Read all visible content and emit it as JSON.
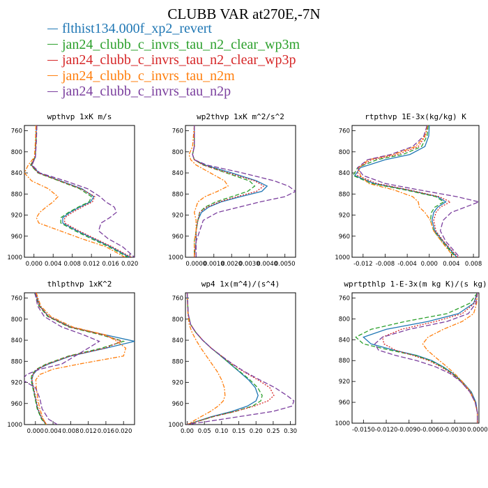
{
  "title": "CLUBB VAR at270E,-7N",
  "legend": [
    {
      "name": "flthist134.000f_xp2_revert",
      "color": "#1f77b4"
    },
    {
      "name": "jan24_clubb_c_invrs_tau_n2_clear_wp3m",
      "color": "#2ca02c"
    },
    {
      "name": "jan24_clubb_c_invrs_tau_n2_clear_wp3p",
      "color": "#d62728"
    },
    {
      "name": "jan24_clubb_c_invrs_tau_n2m",
      "color": "#ff7f0e"
    },
    {
      "name": "jan24_clubb_c_invrs_tau_n2p",
      "color": "#7b3f9e"
    }
  ],
  "chart_data": [
    {
      "type": "line",
      "title": "wpthvp  1xK m/s",
      "xlim": [
        -0.002,
        0.021
      ],
      "ylim": [
        1000,
        750
      ],
      "xticks": [
        0.0,
        0.004,
        0.008,
        0.012,
        0.016,
        0.02
      ],
      "xtick_labels": [
        "0.000",
        "0.004",
        "0.008",
        "0.012",
        "0.016",
        "0.020"
      ],
      "yticks": [
        760,
        800,
        840,
        880,
        920,
        960,
        1000
      ],
      "y": [
        750,
        780,
        810,
        825,
        840,
        855,
        870,
        885,
        895,
        905,
        915,
        925,
        935,
        950,
        965,
        980,
        1000
      ],
      "series": [
        {
          "values": [
            0.0005,
            0.0004,
            0.0003,
            -0.0005,
            0.001,
            0.0055,
            0.01,
            0.0125,
            0.0118,
            0.0095,
            0.0075,
            0.006,
            0.006,
            0.009,
            0.0125,
            0.016,
            0.02
          ]
        },
        {
          "values": [
            0.0005,
            0.0004,
            0.0002,
            -0.0007,
            0.0008,
            0.0052,
            0.0095,
            0.012,
            0.0115,
            0.0092,
            0.0072,
            0.0056,
            0.0056,
            0.0086,
            0.012,
            0.0156,
            0.0196
          ]
        },
        {
          "values": [
            0.0005,
            0.0004,
            0.0002,
            -0.0006,
            0.0009,
            0.0054,
            0.0098,
            0.0127,
            0.0122,
            0.01,
            0.008,
            0.0064,
            0.0064,
            0.0094,
            0.0128,
            0.0163,
            0.0203
          ]
        },
        {
          "values": [
            0.0004,
            0.0003,
            0.0001,
            -0.0012,
            -0.002,
            -0.0005,
            0.003,
            0.005,
            0.004,
            0.0025,
            0.0012,
            0.0005,
            0.001,
            0.0055,
            0.01,
            0.015,
            0.019
          ]
        },
        {
          "values": [
            0.0006,
            0.0005,
            0.0003,
            -0.0004,
            0.0012,
            0.0065,
            0.0112,
            0.0138,
            0.015,
            0.0168,
            0.0172,
            0.0158,
            0.014,
            0.0135,
            0.0155,
            0.0185,
            0.021
          ]
        }
      ]
    },
    {
      "type": "line",
      "title": "wp2thvp  1xK m^2/s^2",
      "xlim": [
        -0.0006,
        0.0056
      ],
      "ylim": [
        1000,
        750
      ],
      "xticks": [
        0.0,
        0.001,
        0.002,
        0.003,
        0.004,
        0.005
      ],
      "xtick_labels": [
        "0.0000",
        "0.0010",
        "0.0020",
        "0.0030",
        "0.0040",
        "0.0050"
      ],
      "yticks": [
        760,
        800,
        840,
        880,
        920,
        960,
        1000
      ],
      "y": [
        750,
        790,
        805,
        815,
        825,
        840,
        855,
        865,
        875,
        885,
        895,
        905,
        915,
        930,
        950,
        970,
        1000
      ],
      "series": [
        {
          "values": [
            -0.0001,
            -0.0001,
            -0.0002,
            -0.0001,
            0.0005,
            0.002,
            0.0034,
            0.004,
            0.0037,
            0.0025,
            0.0014,
            0.0007,
            0.0003,
            0.0001,
            0.0,
            0.0,
            -0.0001
          ]
        },
        {
          "values": [
            -0.0001,
            -0.0001,
            -0.0002,
            -0.0001,
            0.0004,
            0.0017,
            0.003,
            0.0033,
            0.0029,
            0.002,
            0.0011,
            0.0005,
            0.0002,
            0.0001,
            0.0,
            -0.0001,
            -0.0001
          ]
        },
        {
          "values": [
            -0.0001,
            -0.0001,
            -0.0002,
            -0.0001,
            0.0004,
            0.0018,
            0.0033,
            0.0038,
            0.0034,
            0.0023,
            0.0013,
            0.0006,
            0.0002,
            0.0001,
            0.0,
            0.0,
            -0.0001
          ]
        },
        {
          "values": [
            -0.0001,
            -0.0002,
            -0.0004,
            -0.0003,
            0.0,
            0.0008,
            0.0016,
            0.0018,
            0.0012,
            0.0005,
            0.0001,
            0.0,
            -0.0001,
            0.0,
            0.0,
            -0.0001,
            -0.0001
          ]
        },
        {
          "values": [
            -0.0001,
            -0.0001,
            -0.0002,
            -0.0001,
            0.0006,
            0.0026,
            0.0044,
            0.0052,
            0.0056,
            0.005,
            0.0036,
            0.0024,
            0.0012,
            0.0004,
            0.0002,
            0.0,
            0.0
          ]
        }
      ]
    },
    {
      "type": "line",
      "title": "rtpthvp  1E-3x(kg/kg) K",
      "xlim": [
        -0.014,
        0.009
      ],
      "ylim": [
        1000,
        750
      ],
      "xticks": [
        -0.012,
        -0.008,
        -0.004,
        0.0,
        0.004,
        0.008
      ],
      "xtick_labels": [
        "-0.012",
        "-0.008",
        "-0.004",
        "0.000",
        "0.004",
        "0.008"
      ],
      "yticks": [
        760,
        800,
        840,
        880,
        920,
        960,
        1000
      ],
      "y": [
        750,
        770,
        790,
        805,
        815,
        830,
        845,
        860,
        872,
        885,
        895,
        905,
        915,
        930,
        950,
        970,
        1000
      ],
      "series": [
        {
          "values": [
            0.0,
            -0.0001,
            -0.0008,
            -0.0035,
            -0.008,
            -0.0125,
            -0.0135,
            -0.01,
            -0.004,
            0.0015,
            0.003,
            0.0015,
            0.0008,
            0.0005,
            0.001,
            0.0025,
            0.005
          ]
        },
        {
          "values": [
            -0.0002,
            -0.0004,
            -0.0014,
            -0.0048,
            -0.0095,
            -0.013,
            -0.0138,
            -0.0105,
            -0.0045,
            0.0012,
            0.0026,
            0.001,
            0.0004,
            0.0002,
            0.0008,
            0.0023,
            0.0048
          ]
        },
        {
          "values": [
            -0.0003,
            -0.0007,
            -0.002,
            -0.0058,
            -0.0105,
            -0.0128,
            -0.013,
            -0.0095,
            -0.0038,
            0.0018,
            0.0038,
            0.002,
            0.0012,
            0.0008,
            0.0012,
            0.0026,
            0.0052
          ]
        },
        {
          "values": [
            -0.0003,
            -0.0008,
            -0.0025,
            -0.0065,
            -0.011,
            -0.0128,
            -0.0125,
            -0.011,
            -0.0065,
            -0.003,
            -0.002,
            -0.0018,
            -0.0008,
            0.0002,
            0.0008,
            0.0022,
            0.0045
          ]
        },
        {
          "values": [
            -0.0004,
            -0.001,
            -0.003,
            -0.007,
            -0.0112,
            -0.013,
            -0.012,
            -0.008,
            -0.002,
            0.005,
            0.009,
            0.0065,
            0.004,
            0.0025,
            0.002,
            0.003,
            0.0055
          ]
        }
      ]
    },
    {
      "type": "line",
      "title": "thlpthvp  1xK^2",
      "xlim": [
        -0.0025,
        0.0225
      ],
      "ylim": [
        1000,
        750
      ],
      "xticks": [
        0.0,
        0.004,
        0.008,
        0.012,
        0.016,
        0.02
      ],
      "xtick_labels": [
        "0.000",
        "0.004",
        "0.008",
        "0.012",
        "0.016",
        "0.020"
      ],
      "yticks": [
        760,
        800,
        840,
        880,
        920,
        960,
        1000
      ],
      "y": [
        750,
        775,
        795,
        815,
        830,
        842,
        855,
        870,
        885,
        895,
        905,
        915,
        930,
        950,
        970,
        990,
        1000
      ],
      "series": [
        {
          "values": [
            0.0,
            0.001,
            0.003,
            0.008,
            0.016,
            0.0225,
            0.016,
            0.008,
            0.003,
            0.0005,
            -0.0005,
            -0.0008,
            -0.0005,
            0.0,
            0.0005,
            0.0015,
            0.0025
          ]
        },
        {
          "values": [
            -0.0002,
            0.0008,
            0.0028,
            0.0076,
            0.015,
            0.02,
            0.015,
            0.0075,
            0.0025,
            0.0002,
            -0.0008,
            -0.001,
            -0.0006,
            -0.0001,
            0.0004,
            0.0014,
            0.0024
          ]
        },
        {
          "values": [
            0.0,
            0.0009,
            0.003,
            0.0078,
            0.0155,
            0.0195,
            0.0158,
            0.0078,
            0.0028,
            0.0004,
            -0.0006,
            -0.0008,
            -0.0004,
            0.0001,
            0.0006,
            0.0016,
            0.0026
          ]
        },
        {
          "values": [
            0.0002,
            0.0012,
            0.0035,
            0.0085,
            0.016,
            0.0185,
            0.0205,
            0.02,
            0.01,
            0.004,
            0.001,
            0.0001,
            0.0002,
            0.0005,
            0.001,
            0.0018,
            0.0025
          ]
        },
        {
          "values": [
            -0.0001,
            0.0005,
            0.002,
            0.006,
            0.011,
            0.0145,
            0.012,
            0.009,
            0.006,
            0.001,
            -0.002,
            -0.003,
            0.0,
            0.001,
            0.0015,
            0.003,
            0.005
          ]
        }
      ]
    },
    {
      "type": "line",
      "title": "wp4  1x(m^4)/(s^4)",
      "xlim": [
        -0.005,
        0.315
      ],
      "ylim": [
        1000,
        750
      ],
      "xticks": [
        0.0,
        0.05,
        0.1,
        0.15,
        0.2,
        0.25,
        0.3
      ],
      "xtick_labels": [
        "0.00",
        "0.05",
        "0.10",
        "0.15",
        "0.20",
        "0.25",
        "0.30"
      ],
      "yticks": [
        760,
        800,
        840,
        880,
        920,
        960,
        1000
      ],
      "y": [
        750,
        790,
        810,
        825,
        840,
        855,
        870,
        885,
        900,
        915,
        930,
        945,
        955,
        965,
        975,
        985,
        1000
      ],
      "series": [
        {
          "values": [
            0.0,
            0.003,
            0.01,
            0.025,
            0.045,
            0.07,
            0.098,
            0.125,
            0.152,
            0.178,
            0.198,
            0.206,
            0.2,
            0.175,
            0.13,
            0.07,
            0.0
          ]
        },
        {
          "values": [
            0.0,
            0.003,
            0.01,
            0.025,
            0.045,
            0.07,
            0.098,
            0.126,
            0.154,
            0.182,
            0.205,
            0.218,
            0.214,
            0.19,
            0.14,
            0.075,
            0.0
          ]
        },
        {
          "values": [
            0.0,
            0.003,
            0.01,
            0.025,
            0.045,
            0.07,
            0.1,
            0.13,
            0.165,
            0.205,
            0.24,
            0.252,
            0.235,
            0.195,
            0.14,
            0.075,
            0.0
          ]
        },
        {
          "values": [
            0.0,
            0.002,
            0.006,
            0.014,
            0.026,
            0.04,
            0.056,
            0.072,
            0.088,
            0.1,
            0.108,
            0.11,
            0.105,
            0.09,
            0.068,
            0.04,
            0.0
          ]
        },
        {
          "values": [
            0.0,
            0.003,
            0.01,
            0.025,
            0.045,
            0.07,
            0.1,
            0.132,
            0.168,
            0.21,
            0.255,
            0.29,
            0.31,
            0.305,
            0.25,
            0.15,
            0.0
          ]
        }
      ]
    },
    {
      "type": "line",
      "title": "wprtpthlp  1-E-3x(m kg K)/(s kg)",
      "xlim": [
        -0.0165,
        0.0002
      ],
      "ylim": [
        1000,
        750
      ],
      "xticks": [
        -0.015,
        -0.012,
        -0.009,
        -0.006,
        -0.003,
        0.0
      ],
      "xtick_labels": [
        "-0.0150",
        "-0.0120",
        "-0.0090",
        "-0.0060",
        "-0.0030",
        "0.0000"
      ],
      "yticks": [
        760,
        800,
        840,
        880,
        920,
        960,
        1000
      ],
      "y": [
        750,
        770,
        790,
        805,
        820,
        835,
        848,
        860,
        870,
        880,
        892,
        905,
        920,
        940,
        960,
        980,
        1000
      ],
      "series": [
        {
          "values": [
            0.0,
            -0.0005,
            -0.0025,
            -0.0065,
            -0.012,
            -0.015,
            -0.014,
            -0.011,
            -0.008,
            -0.006,
            -0.0045,
            -0.0032,
            -0.002,
            -0.0008,
            -0.0002,
            0.0,
            0.0
          ]
        },
        {
          "values": [
            0.0,
            -0.001,
            -0.004,
            -0.0095,
            -0.014,
            -0.016,
            -0.015,
            -0.0115,
            -0.0082,
            -0.0062,
            -0.0046,
            -0.0033,
            -0.0021,
            -0.0009,
            -0.0003,
            0.0,
            0.0
          ]
        },
        {
          "values": [
            0.0,
            -0.0004,
            -0.002,
            -0.0055,
            -0.01,
            -0.0125,
            -0.0123,
            -0.0108,
            -0.0085,
            -0.0064,
            -0.0048,
            -0.0034,
            -0.0022,
            -0.001,
            -0.0003,
            0.0,
            0.0
          ]
        },
        {
          "values": [
            0.0,
            -0.0001,
            -0.0005,
            -0.002,
            -0.0045,
            -0.0065,
            -0.0072,
            -0.0066,
            -0.0058,
            -0.005,
            -0.004,
            -0.003,
            -0.002,
            -0.0009,
            -0.0003,
            0.0,
            0.0
          ]
        },
        {
          "values": [
            0.0,
            -0.0002,
            -0.0012,
            -0.004,
            -0.009,
            -0.0125,
            -0.0135,
            -0.013,
            -0.0108,
            -0.008,
            -0.0055,
            -0.0036,
            -0.0022,
            -0.001,
            -0.0003,
            0.0,
            0.0
          ]
        }
      ]
    }
  ]
}
